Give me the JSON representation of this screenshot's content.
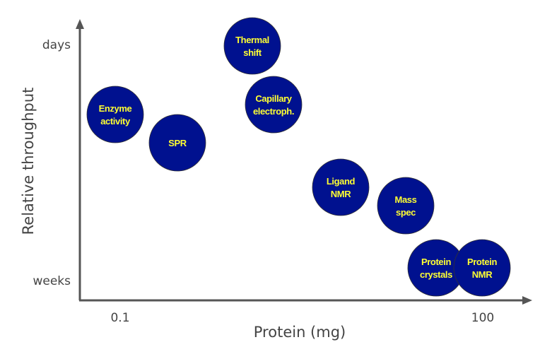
{
  "diagram": {
    "y_axis": {
      "label": "Relative throughput",
      "top_label": "days",
      "bottom_label": "weeks"
    },
    "x_axis": {
      "label": "Protein (mg)",
      "left_tick": "0.1",
      "right_tick": "100"
    },
    "node_color": "#00118f",
    "node_text_color": "#ffff33",
    "axis_color": "#555555",
    "nodes": [
      {
        "id": "thermal-shift",
        "lines": [
          "Thermal",
          "shift"
        ]
      },
      {
        "id": "capillary-electrophoresis",
        "lines": [
          "Capillary",
          "electroph."
        ]
      },
      {
        "id": "enzyme-activity",
        "lines": [
          "Enzyme",
          "activity"
        ]
      },
      {
        "id": "spr",
        "lines": [
          "SPR"
        ]
      },
      {
        "id": "ligand-nmr",
        "lines": [
          "Ligand",
          "NMR"
        ]
      },
      {
        "id": "mass-spec",
        "lines": [
          "Mass",
          "spec"
        ]
      },
      {
        "id": "protein-crystals",
        "lines": [
          "Protein",
          "crystals"
        ]
      },
      {
        "id": "protein-nmr",
        "lines": [
          "Protein",
          "NMR"
        ]
      }
    ]
  }
}
